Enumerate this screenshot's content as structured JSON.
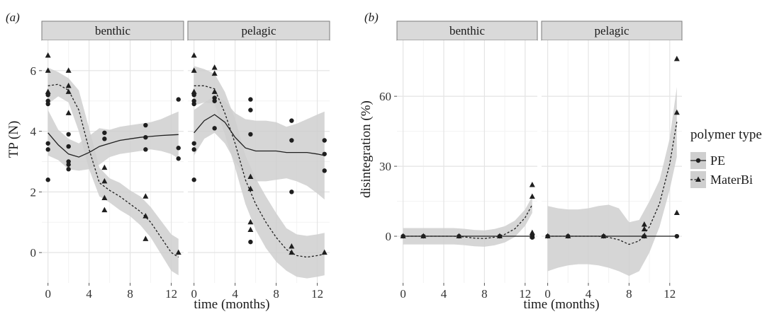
{
  "chart_data": [
    {
      "type": "scatter",
      "tag": "(a)",
      "ylabel": "TP (N)",
      "xlabel": "time (months)",
      "xlim": [
        -0.6,
        13.2
      ],
      "ylim": [
        -1.0,
        7.0
      ],
      "xticks": [
        0,
        4,
        8,
        12
      ],
      "xtick_labels": [
        "0",
        "4",
        "8",
        "12"
      ],
      "yticks": [
        0,
        2,
        4,
        6
      ],
      "ytick_labels": [
        "0",
        "2",
        "4",
        "6"
      ],
      "grid": true,
      "facets": [
        {
          "label": "benthic",
          "points": {
            "PE": [
              [
                0,
                5.2
              ],
              [
                0,
                5.0
              ],
              [
                0,
                4.9
              ],
              [
                0,
                3.6
              ],
              [
                0,
                3.4
              ],
              [
                0,
                2.4
              ],
              [
                2,
                3.9
              ],
              [
                2,
                3.5
              ],
              [
                2,
                3.0
              ],
              [
                2,
                2.9
              ],
              [
                2,
                2.75
              ],
              [
                5.5,
                3.95
              ],
              [
                5.5,
                3.75
              ],
              [
                9.5,
                4.2
              ],
              [
                9.5,
                3.8
              ],
              [
                9.5,
                3.4
              ],
              [
                12.7,
                5.05
              ],
              [
                12.7,
                3.45
              ],
              [
                12.7,
                3.1
              ]
            ],
            "MaterBi": [
              [
                0,
                6.5
              ],
              [
                0,
                6.0
              ],
              [
                0,
                5.3
              ],
              [
                2,
                6.0
              ],
              [
                2,
                5.5
              ],
              [
                2,
                5.3
              ],
              [
                2,
                4.6
              ],
              [
                5.5,
                2.8
              ],
              [
                5.5,
                2.35
              ],
              [
                5.5,
                1.8
              ],
              [
                5.5,
                1.4
              ],
              [
                9.5,
                1.85
              ],
              [
                9.5,
                1.2
              ],
              [
                9.5,
                0.45
              ],
              [
                12.7,
                0.0
              ]
            ]
          },
          "fits": {
            "PE": {
              "x": [
                0,
                1,
                2,
                3,
                4,
                5,
                6,
                7,
                8,
                9,
                10,
                11,
                12,
                12.7
              ],
              "y": [
                3.95,
                3.55,
                3.25,
                3.15,
                3.3,
                3.5,
                3.6,
                3.7,
                3.75,
                3.8,
                3.83,
                3.86,
                3.88,
                3.89
              ],
              "lo": [
                3.2,
                3.05,
                2.75,
                2.7,
                2.75,
                2.9,
                3.15,
                3.25,
                3.3,
                3.35,
                3.4,
                3.35,
                3.25,
                3.1
              ],
              "hi": [
                4.7,
                4.05,
                3.75,
                3.6,
                3.85,
                4.1,
                4.05,
                4.15,
                4.2,
                4.25,
                4.3,
                4.4,
                4.55,
                4.65
              ]
            },
            "MaterBi": {
              "x": [
                0,
                1,
                2,
                3,
                4,
                5,
                6,
                7,
                8,
                9,
                10,
                11,
                12,
                12.7
              ],
              "y": [
                5.5,
                5.55,
                5.35,
                4.7,
                3.4,
                2.3,
                2.05,
                1.85,
                1.6,
                1.35,
                1.0,
                0.5,
                0.0,
                -0.15
              ],
              "lo": [
                4.9,
                5.15,
                4.95,
                4.0,
                2.75,
                1.85,
                1.65,
                1.4,
                1.2,
                0.9,
                0.5,
                -0.05,
                -0.6,
                -0.75
              ],
              "hi": [
                6.1,
                5.95,
                5.75,
                5.35,
                4.1,
                2.8,
                2.45,
                2.3,
                2.05,
                1.85,
                1.5,
                1.05,
                0.6,
                0.45
              ]
            }
          }
        },
        {
          "label": "pelagic",
          "points": {
            "PE": [
              [
                0,
                5.2
              ],
              [
                0,
                5.0
              ],
              [
                0,
                4.9
              ],
              [
                0,
                3.6
              ],
              [
                0,
                3.4
              ],
              [
                0,
                2.4
              ],
              [
                2,
                5.1
              ],
              [
                2,
                5.0
              ],
              [
                2,
                4.1
              ],
              [
                5.5,
                5.05
              ],
              [
                5.5,
                4.7
              ],
              [
                5.5,
                3.9
              ],
              [
                5.5,
                0.35
              ],
              [
                9.5,
                4.35
              ],
              [
                9.5,
                3.7
              ],
              [
                9.5,
                2.0
              ],
              [
                12.7,
                3.7
              ],
              [
                12.7,
                3.25
              ],
              [
                12.7,
                2.7
              ]
            ],
            "MaterBi": [
              [
                0,
                6.5
              ],
              [
                0,
                6.0
              ],
              [
                0,
                5.3
              ],
              [
                2,
                6.1
              ],
              [
                2,
                5.9
              ],
              [
                2,
                5.3
              ],
              [
                5.5,
                2.5
              ],
              [
                5.5,
                2.1
              ],
              [
                5.5,
                1.0
              ],
              [
                5.5,
                0.75
              ],
              [
                9.5,
                0.2
              ],
              [
                9.5,
                0.0
              ],
              [
                12.7,
                0.0
              ]
            ]
          },
          "fits": {
            "PE": {
              "x": [
                0,
                1,
                2,
                3,
                4,
                5,
                6,
                7,
                8,
                9,
                10,
                11,
                12,
                12.7
              ],
              "y": [
                3.95,
                4.35,
                4.55,
                4.3,
                3.8,
                3.45,
                3.35,
                3.35,
                3.35,
                3.3,
                3.3,
                3.3,
                3.25,
                3.2
              ],
              "lo": [
                3.2,
                3.75,
                3.95,
                3.6,
                3.0,
                2.5,
                2.35,
                2.35,
                2.4,
                2.45,
                2.35,
                2.2,
                1.95,
                1.75
              ],
              "hi": [
                4.7,
                4.95,
                5.15,
                5.0,
                4.6,
                4.4,
                4.35,
                4.35,
                4.3,
                4.15,
                4.25,
                4.4,
                4.55,
                4.65
              ]
            },
            "MaterBi": {
              "x": [
                0,
                1,
                2,
                3,
                4,
                5,
                6,
                7,
                8,
                9,
                10,
                11,
                12,
                12.7
              ],
              "y": [
                5.5,
                5.5,
                5.4,
                4.6,
                3.6,
                2.4,
                1.6,
                1.0,
                0.5,
                0.1,
                -0.1,
                -0.15,
                -0.1,
                -0.05
              ],
              "lo": [
                4.85,
                4.95,
                4.9,
                3.9,
                2.8,
                1.6,
                0.75,
                0.15,
                -0.3,
                -0.6,
                -0.8,
                -0.85,
                -0.8,
                -0.75
              ],
              "hi": [
                6.15,
                6.05,
                5.9,
                5.3,
                4.4,
                3.2,
                2.45,
                1.85,
                1.3,
                0.8,
                0.6,
                0.55,
                0.6,
                0.65
              ]
            }
          }
        }
      ]
    },
    {
      "type": "scatter",
      "tag": "(b)",
      "ylabel": "disintegration (%)",
      "xlabel": "time (months)",
      "xlim": [
        -0.6,
        13.2
      ],
      "ylim": [
        -20,
        84
      ],
      "xticks": [
        0,
        4,
        8,
        12
      ],
      "xtick_labels": [
        "0",
        "4",
        "8",
        "12"
      ],
      "yticks": [
        0,
        30,
        60
      ],
      "ytick_labels": [
        "0",
        "30",
        "60"
      ],
      "grid": true,
      "facets": [
        {
          "label": "benthic",
          "points": {
            "PE": [
              [
                0,
                0
              ],
              [
                2,
                0
              ],
              [
                5.5,
                0
              ],
              [
                9.5,
                0
              ],
              [
                12.7,
                0
              ],
              [
                12.7,
                -0.5
              ],
              [
                12.7,
                0.5
              ]
            ],
            "MaterBi": [
              [
                0,
                0
              ],
              [
                2,
                0
              ],
              [
                5.5,
                0
              ],
              [
                9.5,
                0
              ],
              [
                12.7,
                22
              ],
              [
                12.7,
                17
              ],
              [
                12.7,
                1.5
              ],
              [
                12.7,
                0
              ]
            ]
          },
          "fits": {
            "PE": {
              "x": [
                0,
                12.7
              ],
              "y": [
                0,
                0
              ]
            },
            "MaterBi": {
              "x": [
                0,
                1,
                2,
                3,
                4,
                5,
                6,
                7,
                8,
                9,
                10,
                11,
                12,
                12.7
              ],
              "y": [
                0,
                0,
                0,
                0,
                0,
                0,
                -0.3,
                -0.8,
                -1.0,
                -0.4,
                0.8,
                3.2,
                8.0,
                13.5
              ],
              "lo": [
                -3.5,
                -3.5,
                -3.5,
                -3.5,
                -3.5,
                -3.5,
                -3.8,
                -4.3,
                -4.5,
                -3.9,
                -2.7,
                -0.3,
                4.5,
                10.0
              ],
              "hi": [
                3.5,
                3.5,
                3.5,
                3.5,
                3.5,
                3.5,
                3.2,
                2.7,
                2.5,
                3.1,
                4.3,
                6.7,
                11.5,
                17.0
              ]
            }
          }
        },
        {
          "label": "pelagic",
          "points": {
            "PE": [
              [
                0,
                0
              ],
              [
                2,
                0
              ],
              [
                5.5,
                0
              ],
              [
                9.5,
                0
              ],
              [
                12.7,
                0
              ]
            ],
            "MaterBi": [
              [
                0,
                0
              ],
              [
                2,
                0
              ],
              [
                5.5,
                0
              ],
              [
                9.5,
                0
              ],
              [
                9.5,
                3
              ],
              [
                9.5,
                5
              ],
              [
                12.7,
                76
              ],
              [
                12.7,
                53
              ],
              [
                12.7,
                10
              ]
            ]
          },
          "fits": {
            "PE": {
              "x": [
                0,
                12.7
              ],
              "y": [
                0,
                0
              ]
            },
            "MaterBi": {
              "x": [
                0,
                1,
                2,
                3,
                4,
                5,
                6,
                7,
                8,
                9,
                10,
                11,
                12,
                12.7
              ],
              "y": [
                0,
                0,
                0,
                0,
                0,
                0,
                -0.5,
                -1.5,
                -3.5,
                -2.0,
                4.0,
                14.0,
                31.0,
                49.0
              ],
              "lo": [
                -15,
                -13.5,
                -12.5,
                -12,
                -12,
                -12.5,
                -13.5,
                -15,
                -17,
                -15,
                -7,
                4,
                20,
                34
              ],
              "hi": [
                13,
                12,
                11.5,
                11.5,
                12,
                13,
                13.5,
                12,
                6,
                7,
                15,
                24,
                42,
                64
              ]
            }
          }
        }
      ]
    }
  ],
  "legend": {
    "title": "polymer type",
    "items": [
      {
        "label": "PE",
        "shape": "circle"
      },
      {
        "label": "MaterBi",
        "shape": "triangle"
      }
    ]
  },
  "colors": {
    "strip_bg": "#d9d9d9",
    "grid_major": "#e4e4e4",
    "grid_minor": "#f2f2f2",
    "ribbon": "#cfcfcf",
    "points": "#1f1f1f",
    "line": "#1f1f1f"
  }
}
